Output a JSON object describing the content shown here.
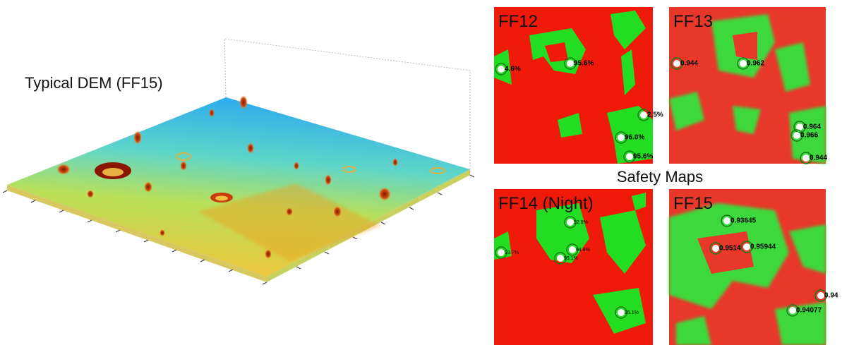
{
  "dem": {
    "title": "Typical DEM (FF15)"
  },
  "safety": {
    "title": "Safety Maps",
    "panels": [
      {
        "label": "FF12",
        "points": [
          "4.6%",
          "95.6%",
          "2.5%",
          "96.0%",
          "95.6%"
        ]
      },
      {
        "label": "FF13",
        "points": [
          "0.944",
          "0.962",
          "0.964",
          "0.966",
          "0.944"
        ]
      },
      {
        "label": "FF14 (Night)",
        "points": [
          "93.7%",
          "92.8%",
          "94.8%",
          "95.1%",
          "95.1%"
        ]
      },
      {
        "label": "FF15",
        "points": [
          "0.93645",
          "0.9514",
          "0.95944",
          "0.94",
          "0.94077"
        ]
      }
    ]
  }
}
